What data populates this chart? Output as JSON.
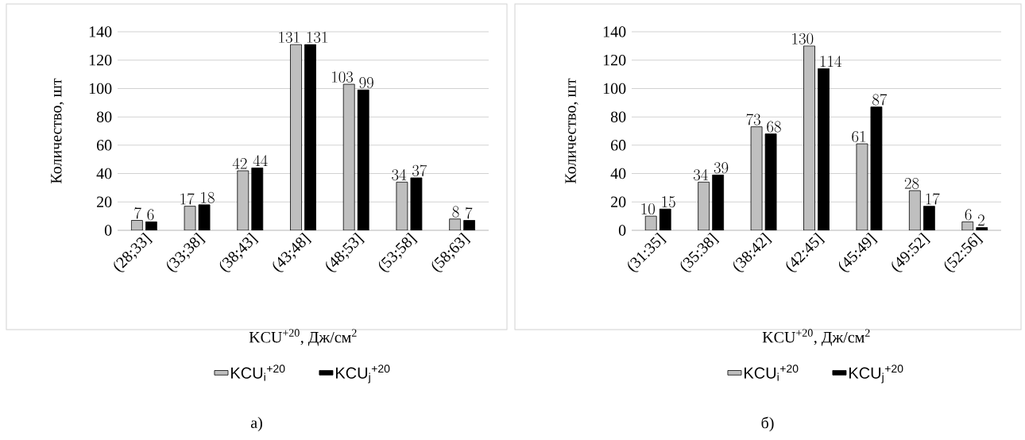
{
  "chart_data": [
    {
      "type": "bar",
      "categories": [
        "(28;33]",
        "(33;38]",
        "(38;43]",
        "(43;48]",
        "(48;53]",
        "(53;58]",
        "(58;63]"
      ],
      "series": [
        {
          "name": "KCU$_{i}$$^{+20}$",
          "color": "#bfbfbf",
          "values": [
            7,
            17,
            42,
            131,
            103,
            34,
            8
          ]
        },
        {
          "name": "KCU$_{j}$$^{+20}$",
          "color": "#000000",
          "values": [
            6,
            18,
            44,
            131,
            99,
            37,
            7
          ]
        }
      ],
      "xlabel": "KCU$^{+20}$, Дж/см$^{2}$",
      "ylabel": "Количество, шт",
      "ylim": [
        0,
        140
      ],
      "yticks": [
        0,
        20,
        40,
        60,
        80,
        100,
        120,
        140
      ],
      "grid": "y",
      "legend": "bottom",
      "data_labels": true,
      "annotations": [
        "а)"
      ]
    },
    {
      "type": "bar",
      "categories": [
        "(31:35]",
        "(35:38]",
        "(38:42]",
        "(42:45]",
        "(45:49]",
        "(49:52]",
        "(52:56]"
      ],
      "series": [
        {
          "name": "KCU$_{i}$$^{+20}$",
          "color": "#bfbfbf",
          "values": [
            10,
            34,
            73,
            130,
            61,
            28,
            6
          ]
        },
        {
          "name": "KCU$_{j}$$^{+20}$",
          "color": "#000000",
          "values": [
            15,
            39,
            68,
            114,
            87,
            17,
            2
          ]
        }
      ],
      "xlabel": "KCU$^{+20}$, Дж/см$^{2}$",
      "ylabel": "Количество, шт",
      "ylim": [
        0,
        140
      ],
      "yticks": [
        0,
        20,
        40,
        60,
        80,
        100,
        120,
        140
      ],
      "grid": "y",
      "legend": "bottom",
      "data_labels": true,
      "annotations": [
        "б)"
      ]
    }
  ]
}
